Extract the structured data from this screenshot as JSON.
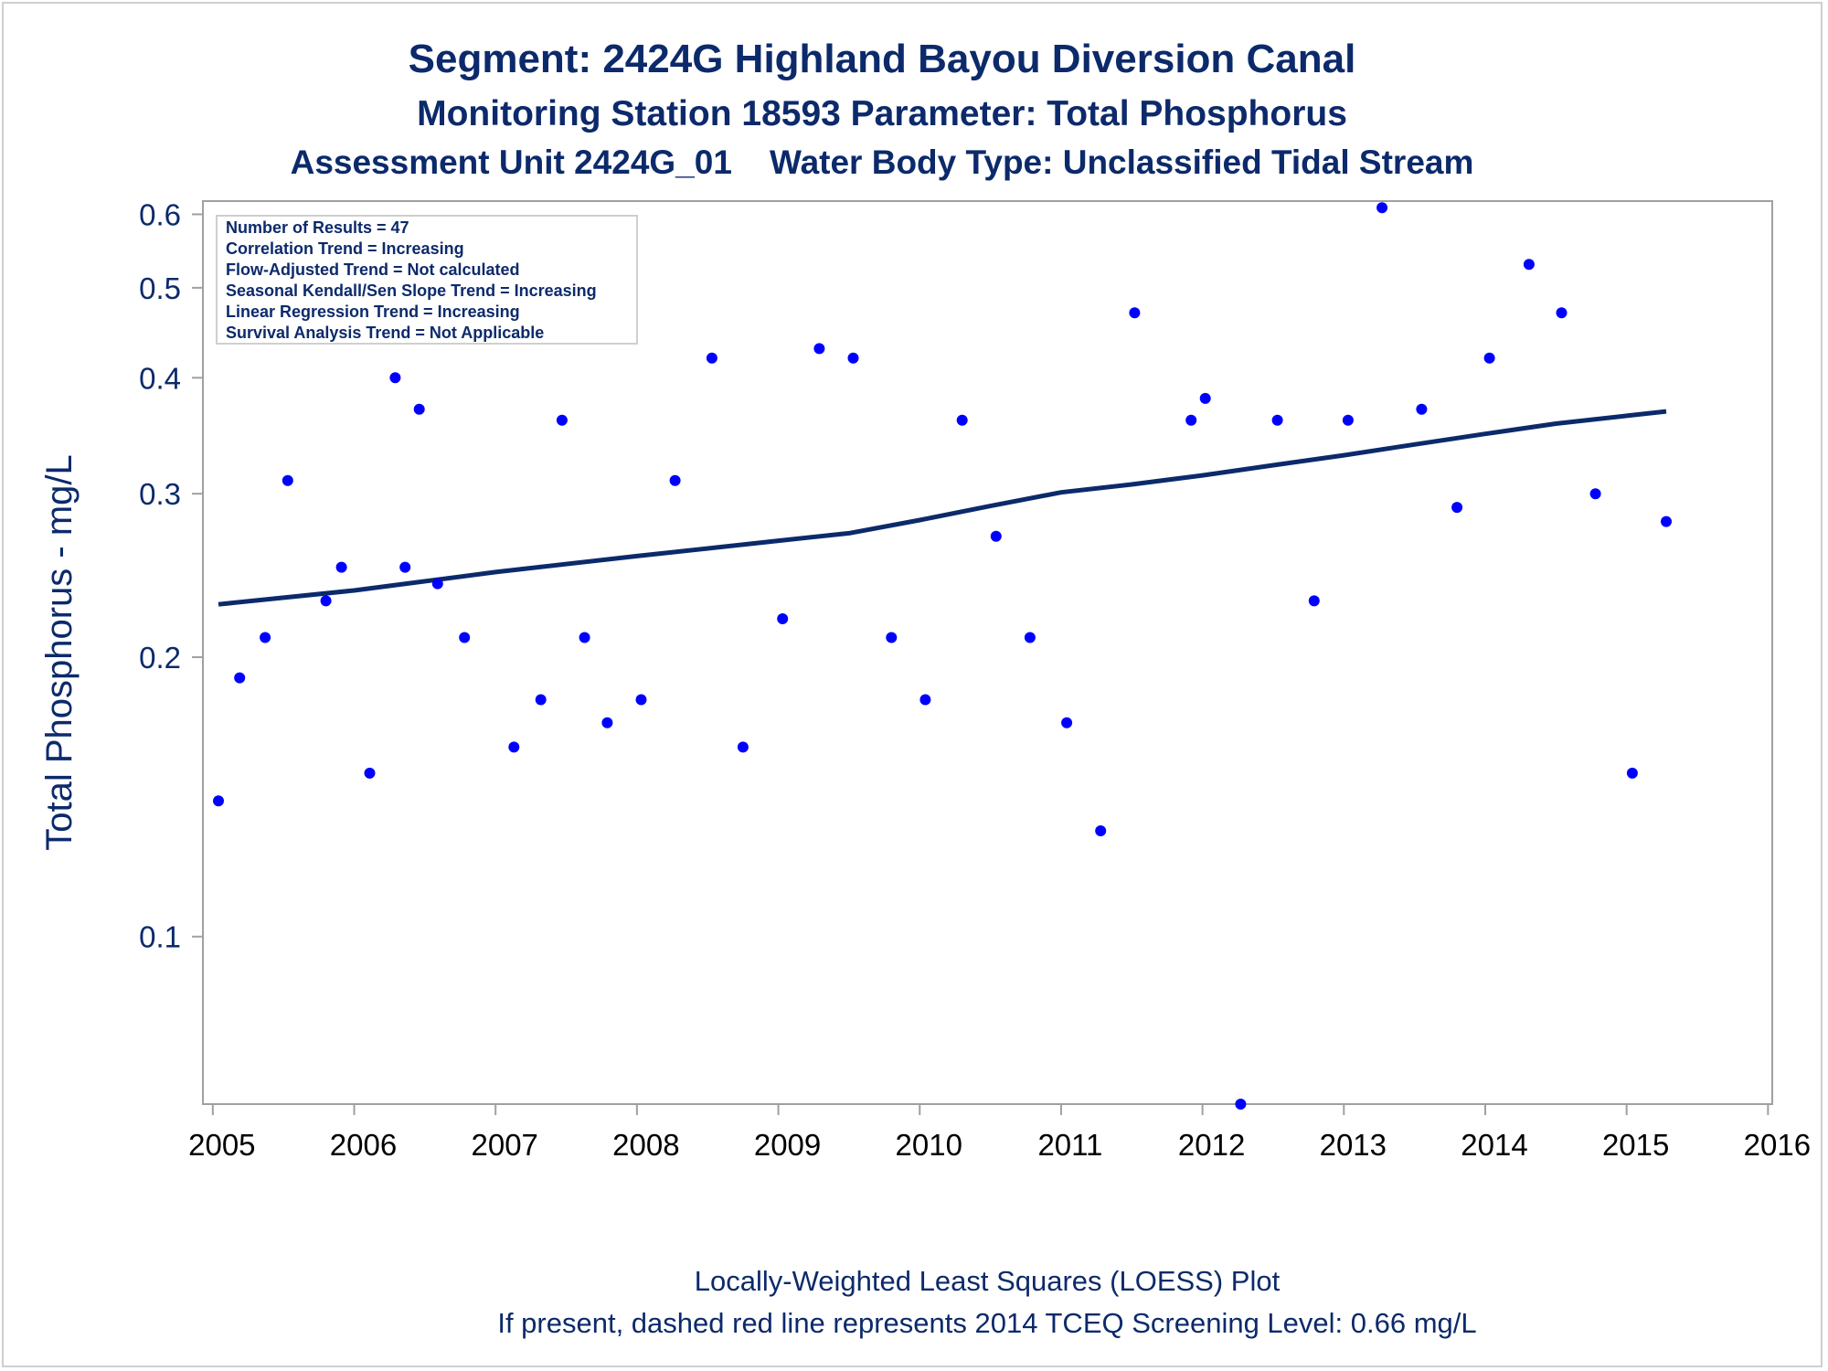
{
  "chart_data": {
    "type": "scatter",
    "title": "Segment: 2424G  Highland Bayou Diversion Canal",
    "subtitle": "Monitoring Station 18593 Parameter: Total Phosphorus",
    "subtitle2": "Assessment Unit 2424G_01    Water Body Type: Unclassified Tidal Stream",
    "ylabel": "Total Phosphorus - mg/L",
    "xlabel": "",
    "footnote1": "Locally-Weighted Least Squares (LOESS) Plot",
    "footnote2": "If present, dashed red line represents 2014 TCEQ Screening Level: 0.66 mg/L",
    "y_scale": "log",
    "ylim": [
      0.066,
      0.62
    ],
    "xlim": [
      2004.93,
      2016.03
    ],
    "x_ticks": [
      "2005",
      "2006",
      "2007",
      "2008",
      "2009",
      "2010",
      "2011",
      "2012",
      "2013",
      "2014",
      "2015",
      "2016"
    ],
    "y_ticks": [
      "0.1",
      "0.2",
      "0.3",
      "0.4",
      "0.5",
      "0.6"
    ],
    "grid": false,
    "stats_box": [
      "Number of Results = 47",
      "Correlation Trend = Increasing",
      "Flow-Adjusted Trend = Not calculated",
      "Seasonal Kendall/Sen Slope Trend = Increasing",
      "Linear Regression Trend = Increasing",
      "Survival Analysis Trend = Not Applicable"
    ],
    "colors": {
      "points": "#0000ff",
      "trend": "#0c2a6b",
      "text": "#0c2a6b",
      "frame": "#a0a0a0"
    },
    "series": [
      {
        "kind": "points",
        "x": [
          2005.04,
          2005.19,
          2005.37,
          2005.53,
          2005.8,
          2005.91,
          2006.11,
          2006.29,
          2006.36,
          2006.46,
          2006.59,
          2006.78,
          2007.13,
          2007.32,
          2007.47,
          2007.63,
          2007.79,
          2008.03,
          2008.27,
          2008.53,
          2008.75,
          2009.03,
          2009.29,
          2009.53,
          2009.8,
          2010.04,
          2010.3,
          2010.54,
          2010.78,
          2011.04,
          2011.28,
          2011.52,
          2011.92,
          2012.02,
          2012.27,
          2012.53,
          2012.79,
          2013.03,
          2013.27,
          2013.55,
          2013.8,
          2014.03,
          2014.31,
          2014.54,
          2014.78,
          2015.04,
          2015.28
        ],
        "y": [
          0.14,
          0.19,
          0.21,
          0.31,
          0.23,
          0.25,
          0.15,
          0.4,
          0.25,
          0.37,
          0.24,
          0.21,
          0.16,
          0.18,
          0.36,
          0.21,
          0.17,
          0.18,
          0.31,
          0.42,
          0.16,
          0.22,
          0.43,
          0.42,
          0.21,
          0.18,
          0.36,
          0.27,
          0.21,
          0.17,
          0.13,
          0.47,
          0.36,
          0.38,
          0.066,
          0.36,
          0.23,
          0.36,
          0.61,
          0.37,
          0.29,
          0.42,
          0.53,
          0.47,
          0.3,
          0.15,
          0.28
        ]
      },
      {
        "kind": "loess_line",
        "x": [
          2005.04,
          2006.0,
          2007.0,
          2008.0,
          2009.0,
          2009.5,
          2010.0,
          2010.5,
          2011.0,
          2011.5,
          2012.0,
          2012.5,
          2013.0,
          2013.5,
          2014.0,
          2014.5,
          2015.0,
          2015.28
        ],
        "y": [
          0.228,
          0.236,
          0.247,
          0.257,
          0.267,
          0.272,
          0.281,
          0.291,
          0.301,
          0.307,
          0.314,
          0.322,
          0.33,
          0.339,
          0.348,
          0.357,
          0.364,
          0.368
        ]
      }
    ]
  }
}
